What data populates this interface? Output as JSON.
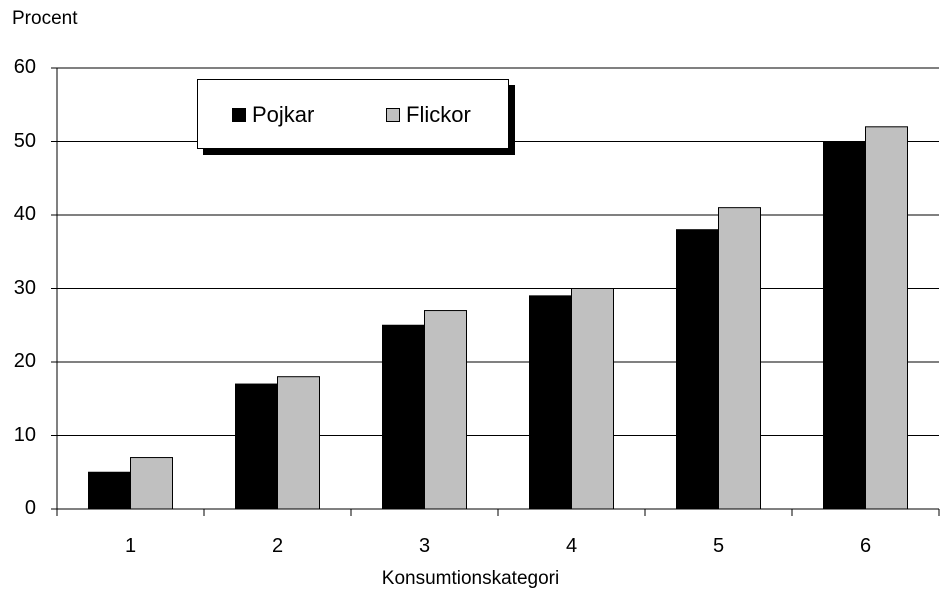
{
  "chart_data": {
    "type": "bar",
    "ylabel": "Procent",
    "xlabel": "Konsumtionskategori",
    "categories": [
      "1",
      "2",
      "3",
      "4",
      "5",
      "6"
    ],
    "series": [
      {
        "name": "Pojkar",
        "color": "#000000",
        "values": [
          5,
          17,
          25,
          29,
          38,
          50
        ]
      },
      {
        "name": "Flickor",
        "color": "#c0c0c0",
        "values": [
          7,
          18,
          27,
          30,
          41,
          52
        ]
      }
    ],
    "ylim": [
      0,
      60
    ],
    "yticks": [
      "0",
      "10",
      "20",
      "30",
      "40",
      "50",
      "60"
    ],
    "grid": true,
    "legend_position": "top-left"
  }
}
